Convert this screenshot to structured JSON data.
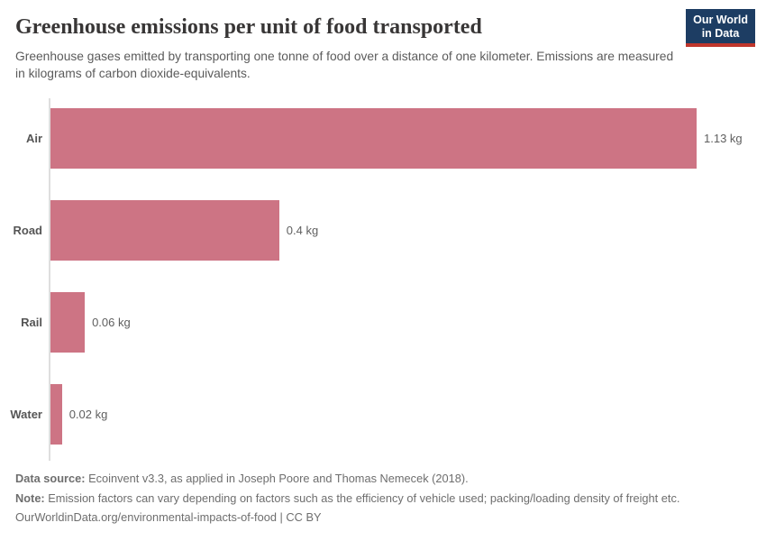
{
  "header": {
    "title": "Greenhouse emissions per unit of food transported",
    "subtitle": "Greenhouse gases emitted by transporting one tonne of food over a distance of one kilometer. Emissions are measured in kilograms of carbon dioxide-equivalents.",
    "logo_line1": "Our World",
    "logo_line2": "in Data"
  },
  "chart_data": {
    "type": "bar",
    "orientation": "horizontal",
    "title": "Greenhouse emissions per unit of food transported",
    "categories": [
      "Air",
      "Road",
      "Rail",
      "Water"
    ],
    "values": [
      1.13,
      0.4,
      0.06,
      0.02
    ],
    "value_labels": [
      "1.13 kg",
      "0.4 kg",
      "0.06 kg",
      "0.02 kg"
    ],
    "unit": "kg",
    "xlabel": "",
    "ylabel": "",
    "xlim": [
      0,
      1.13
    ],
    "grid": false,
    "legend": false,
    "bar_color": "#cd7484",
    "axis_line_color": "#dedede"
  },
  "footer": {
    "data_source_label": "Data source:",
    "data_source_text": "Ecoinvent v3.3, as applied in Joseph Poore and Thomas Nemecek (2018).",
    "note_label": "Note:",
    "note_text": "Emission factors can vary depending on factors such as the efficiency of vehicle used; packing/loading density of freight etc.",
    "url": "OurWorldinData.org/environmental-impacts-of-food",
    "separator": "|",
    "license": "CC BY"
  },
  "colors": {
    "logo_bg": "#1d3d63",
    "logo_underline": "#c0362c",
    "title_text": "#383636",
    "subtitle_text": "#5b5b5b",
    "footer_text": "#6e6e6e"
  }
}
